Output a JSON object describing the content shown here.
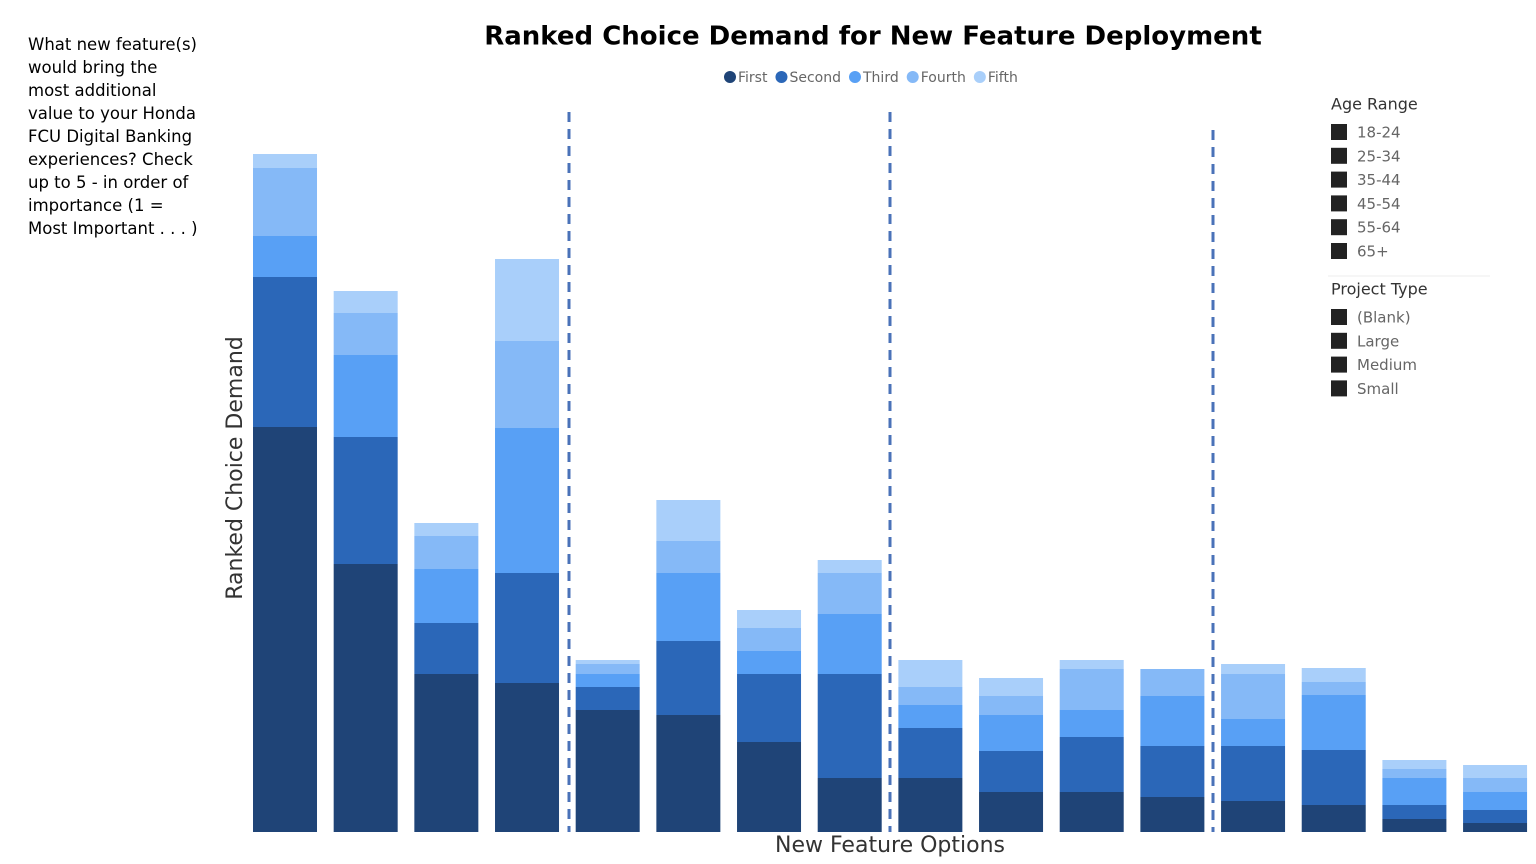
{
  "question": "What new feature(s) would bring the most additional value to your Honda FCU Digital Banking experiences? Check up to 5 - in order of importance (1 = Most Important . . . )",
  "chart_data": {
    "type": "stacked_bar",
    "title": "Ranked Choice Demand for New Feature Deployment",
    "x_label": "New Feature Options",
    "y_label": "Ranked Choice Demand",
    "legend": "top",
    "categories": [
      null,
      null,
      null,
      null,
      null,
      null,
      null,
      null,
      null,
      null,
      null,
      null,
      null,
      null,
      null,
      null
    ],
    "series": [
      {
        "name": "First",
        "color": "#1f4477",
        "values": [
          405,
          268,
          158,
          149,
          122,
          117,
          90,
          54,
          54,
          40,
          40,
          35,
          31,
          27,
          13,
          9
        ]
      },
      {
        "name": "Second",
        "color": "#2b67b8",
        "values": [
          150,
          127,
          51,
          110,
          23,
          74,
          68,
          104,
          50,
          41,
          55,
          51,
          55,
          55,
          14,
          13
        ]
      },
      {
        "name": "Third",
        "color": "#58a0f5",
        "values": [
          41,
          82,
          54,
          145,
          13,
          68,
          23,
          60,
          23,
          36,
          27,
          50,
          27,
          55,
          27,
          18
        ]
      },
      {
        "name": "Fourth",
        "color": "#85b9f7",
        "values": [
          68,
          42,
          33,
          87,
          10,
          32,
          23,
          41,
          18,
          19,
          41,
          27,
          45,
          13,
          9,
          14
        ]
      },
      {
        "name": "Fifth",
        "color": "#a9cffa",
        "values": [
          14,
          22,
          13,
          82,
          4,
          41,
          18,
          13,
          27,
          18,
          9,
          0,
          10,
          14,
          9,
          13
        ]
      }
    ],
    "ylim": [
      0,
      700
    ]
  },
  "slicers": [
    {
      "title": "Age Range",
      "items": [
        "18-24",
        "25-34",
        "35-44",
        "45-54",
        "55-64",
        "65+"
      ]
    },
    {
      "title": "Project Type",
      "items": [
        "(Blank)",
        "Large",
        "Medium",
        "Small"
      ]
    }
  ]
}
